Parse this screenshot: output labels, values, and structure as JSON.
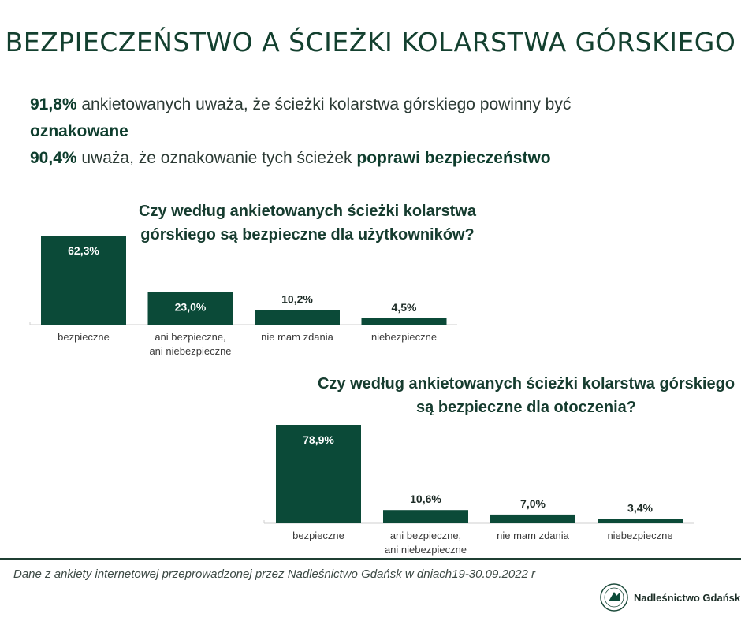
{
  "title": "BEZPIECZEŃSTWO A ŚCIEŻKI KOLARSTWA GÓRSKIEGO",
  "stats": {
    "line1_value": "91,8%",
    "line1_text": " ankietowanych uważa, że ścieżki kolarstwa górskiego powinny być ",
    "line1_emph": "oznakowane",
    "line2_value": "90,4%",
    "line2_text": " uważa, że oznakowanie tych ścieżek ",
    "line2_emph": "poprawi bezpieczeństwo"
  },
  "chart_data": [
    {
      "type": "bar",
      "title": "Czy według ankietowanych ścieżki kolarstwa górskiego są bezpieczne dla użytkowników?",
      "categories": [
        "bezpieczne",
        "ani bezpieczne,\nani niebezpieczne",
        "nie mam zdania",
        "niebezpieczne"
      ],
      "values": [
        62.3,
        23.0,
        10.2,
        4.5
      ],
      "value_labels": [
        "62,3%",
        "23,0%",
        "10,2%",
        "4,5%"
      ],
      "ylim": [
        0,
        62.3
      ],
      "grid": false,
      "color": "#0b4a38"
    },
    {
      "type": "bar",
      "title": "Czy według ankietowanych ścieżki kolarstwa górskiego są bezpieczne dla otoczenia?",
      "categories": [
        "bezpieczne",
        "ani bezpieczne,\nani niebezpieczne",
        "nie mam zdania",
        "niebezpieczne"
      ],
      "values": [
        78.9,
        10.6,
        7.0,
        3.4
      ],
      "value_labels": [
        "78,9%",
        "10,6%",
        "7,0%",
        "3,4%"
      ],
      "ylim": [
        0,
        78.9
      ],
      "grid": false,
      "color": "#0b4a38"
    }
  ],
  "footer": {
    "source": "Dane z ankiety internetowej przeprowadzonej  przez Nadleśnictwo Gdańsk w dniach19-30.09.2022 r",
    "brand": "Nadleśnictwo Gdańsk"
  },
  "icons": {
    "logo": "forest-district-emblem-icon"
  }
}
